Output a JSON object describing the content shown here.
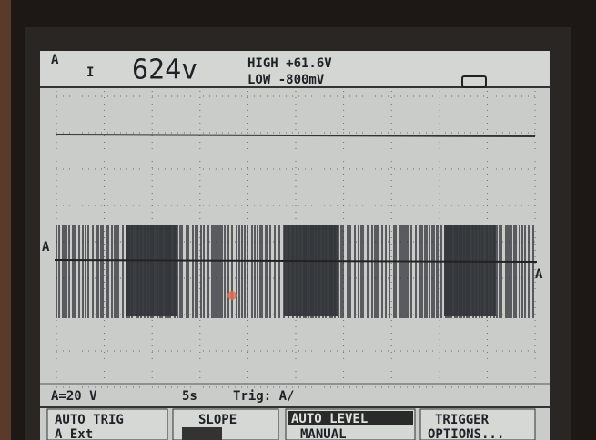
{
  "status": {
    "channel": "A",
    "reading": "624v",
    "high": "HIGH +61.6V",
    "low": "LOW -800mV"
  },
  "trace": {
    "marker_left": "A",
    "marker_right": "A"
  },
  "footer": {
    "scale": "A=20 V",
    "time": "5s",
    "trigger": "Trig: A/"
  },
  "menu": {
    "auto_trig": "AUTO TRIG",
    "auto_trig_source": "A Ext",
    "slope": "SLOPE",
    "auto_level": "AUTO LEVEL",
    "manual": "MANUAL",
    "trigger": "TRIGGER",
    "options": "OPTIONS..."
  }
}
